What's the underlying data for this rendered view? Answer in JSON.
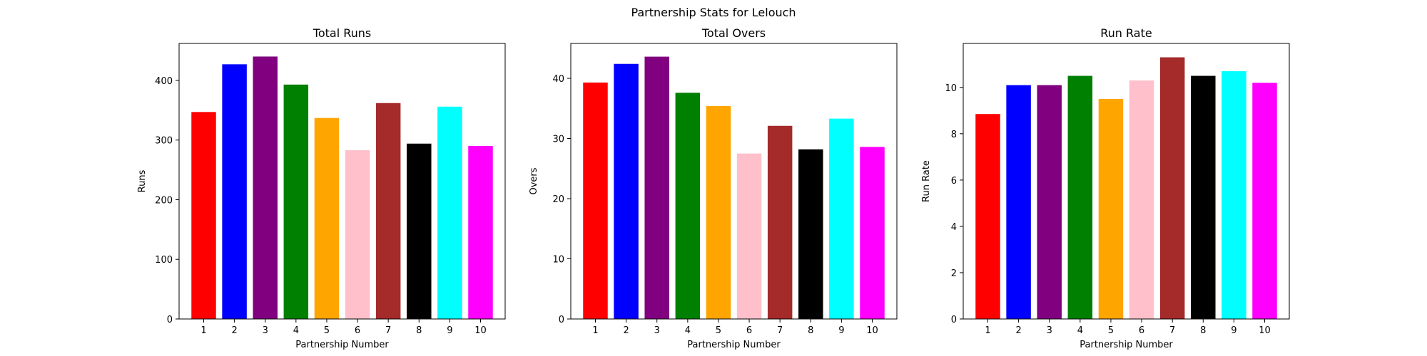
{
  "figure": {
    "suptitle": "Partnership Stats for Lelouch"
  },
  "chart_data": [
    {
      "type": "bar",
      "title": "Total Runs",
      "xlabel": "Partnership Number",
      "ylabel": "Runs",
      "categories": [
        "1",
        "2",
        "3",
        "4",
        "5",
        "6",
        "7",
        "8",
        "9",
        "10"
      ],
      "values": [
        347,
        427,
        440,
        393,
        337,
        283,
        362,
        294,
        356,
        290
      ],
      "ylim": [
        0,
        462
      ],
      "yticks": [
        0,
        100,
        200,
        300,
        400
      ],
      "ytick_labels": [
        "0",
        "100",
        "200",
        "300",
        "400"
      ],
      "colors": [
        "#ff0000",
        "#0000ff",
        "#800080",
        "#008000",
        "#ffa500",
        "#ffc0cb",
        "#a52a2a",
        "#000000",
        "#00ffff",
        "#ff00ff"
      ],
      "grid": false,
      "legend": "none"
    },
    {
      "type": "bar",
      "title": "Total Overs",
      "xlabel": "Partnership Number",
      "ylabel": "Overs",
      "categories": [
        "1",
        "2",
        "3",
        "4",
        "5",
        "6",
        "7",
        "8",
        "9",
        "10"
      ],
      "values": [
        39.3,
        42.4,
        43.6,
        37.6,
        35.4,
        27.5,
        32.1,
        28.2,
        33.3,
        28.6
      ],
      "ylim": [
        0,
        45.8
      ],
      "yticks": [
        0,
        10,
        20,
        30,
        40
      ],
      "ytick_labels": [
        "0",
        "10",
        "20",
        "30",
        "40"
      ],
      "colors": [
        "#ff0000",
        "#0000ff",
        "#800080",
        "#008000",
        "#ffa500",
        "#ffc0cb",
        "#a52a2a",
        "#000000",
        "#00ffff",
        "#ff00ff"
      ],
      "grid": false,
      "legend": "none"
    },
    {
      "type": "bar",
      "title": "Run Rate",
      "xlabel": "Partnership Number",
      "ylabel": "Run Rate",
      "categories": [
        "1",
        "2",
        "3",
        "4",
        "5",
        "6",
        "7",
        "8",
        "9",
        "10"
      ],
      "values": [
        8.85,
        10.1,
        10.1,
        10.5,
        9.5,
        10.3,
        11.3,
        10.5,
        10.7,
        10.2
      ],
      "ylim": [
        0,
        11.9
      ],
      "yticks": [
        0,
        2,
        4,
        6,
        8,
        10
      ],
      "ytick_labels": [
        "0",
        "2",
        "4",
        "6",
        "8",
        "10"
      ],
      "colors": [
        "#ff0000",
        "#0000ff",
        "#800080",
        "#008000",
        "#ffa500",
        "#ffc0cb",
        "#a52a2a",
        "#000000",
        "#00ffff",
        "#ff00ff"
      ],
      "grid": false,
      "legend": "none"
    }
  ]
}
